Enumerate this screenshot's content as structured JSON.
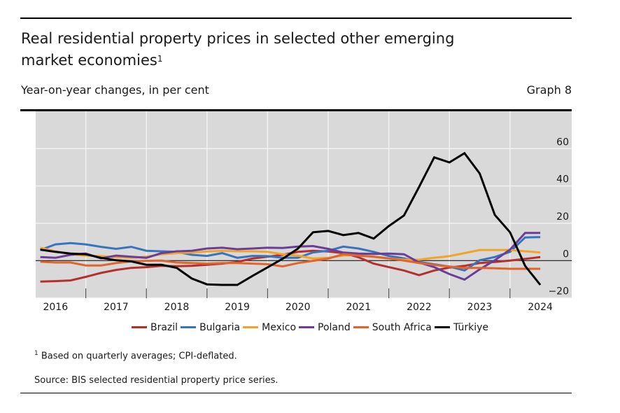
{
  "header": {
    "title": "Real residential property prices in selected other emerging market economies",
    "title_footnote_mark": "1",
    "subtitle": "Year-on-year changes, in per cent",
    "graph_number": "Graph 8"
  },
  "footer": {
    "footnote_mark": "1",
    "footnote": "Based on quarterly averages; CPI-deflated.",
    "source": "Source: BIS selected residential property price series."
  },
  "chart_data": {
    "type": "line",
    "title": "Real residential property prices in selected other emerging market economies",
    "xlabel": "",
    "ylabel": "Year-on-year changes, in per cent",
    "x_start": "2016-Q1",
    "x_end": "2024-Q2",
    "frequency": "quarterly",
    "x_tick_labels": [
      "2016",
      "2017",
      "2018",
      "2019",
      "2020",
      "2021",
      "2022",
      "2023",
      "2024"
    ],
    "ylim": [
      -22,
      70
    ],
    "y_ticks": [
      -20,
      0,
      20,
      40,
      60
    ],
    "y_axis_side": "right",
    "grid": true,
    "background": "#d9d9d9",
    "legend_position": "bottom",
    "series": [
      {
        "name": "Brazil",
        "color": "#b5302c",
        "values": [
          -11.2,
          -11.0,
          -10.6,
          -8.7,
          -6.6,
          -5.0,
          -3.9,
          -3.5,
          -2.8,
          -3.0,
          -2.8,
          -2.2,
          -1.6,
          -0.7,
          1.1,
          2.1,
          3.1,
          4.7,
          5.3,
          4.9,
          4.0,
          1.8,
          -1.6,
          -3.5,
          -5.3,
          -7.8,
          -5.3,
          -3.7,
          -2.8,
          -1.3,
          -0.7,
          0.0,
          0.9,
          1.9
        ]
      },
      {
        "name": "Bulgaria",
        "color": "#3a73bd",
        "values": [
          5.7,
          8.7,
          9.4,
          8.7,
          7.4,
          6.3,
          7.4,
          5.3,
          5.0,
          4.7,
          3.1,
          2.5,
          4.0,
          1.5,
          2.5,
          2.4,
          1.5,
          1.5,
          4.4,
          5.3,
          7.5,
          6.5,
          4.7,
          2.5,
          1.2,
          -0.7,
          -2.0,
          -3.2,
          -5.3,
          0.2,
          1.9,
          4.7,
          12.4,
          12.6
        ]
      },
      {
        "name": "Mexico",
        "color": "#f0a42a",
        "values": [
          6.9,
          5.0,
          3.4,
          2.7,
          2.4,
          1.8,
          1.5,
          2.1,
          3.4,
          4.0,
          4.3,
          4.9,
          5.3,
          5.0,
          5.0,
          4.7,
          3.4,
          2.7,
          1.1,
          1.5,
          2.7,
          3.0,
          2.1,
          1.1,
          0.5,
          0.5,
          1.5,
          2.4,
          4.0,
          5.7,
          5.7,
          5.7,
          5.0,
          4.4
        ]
      },
      {
        "name": "Poland",
        "color": "#6a3d96",
        "values": [
          1.9,
          1.5,
          3.1,
          3.8,
          1.2,
          2.7,
          2.1,
          1.5,
          4.0,
          5.0,
          5.3,
          6.5,
          6.9,
          6.1,
          6.5,
          6.9,
          6.8,
          7.5,
          7.8,
          6.3,
          4.3,
          3.8,
          3.6,
          3.8,
          3.4,
          -1.0,
          -3.5,
          -7.2,
          -10.2,
          -4.7,
          0.2,
          5.9,
          14.8,
          14.8
        ]
      },
      {
        "name": "South Africa",
        "color": "#e2642b",
        "values": [
          -0.6,
          -1.0,
          -1.0,
          -2.6,
          -2.6,
          -1.3,
          -0.4,
          -0.1,
          0.0,
          -1.0,
          -1.3,
          -1.6,
          -1.3,
          -1.3,
          -1.6,
          -1.9,
          -3.1,
          -1.3,
          -0.1,
          1.1,
          3.4,
          2.7,
          2.1,
          1.2,
          0.0,
          -1.3,
          -2.3,
          -3.2,
          -3.9,
          -3.9,
          -4.1,
          -4.4,
          -4.4,
          -4.4
        ]
      },
      {
        "name": "Türkiye",
        "color": "#000000",
        "values": [
          5.9,
          4.7,
          3.8,
          3.4,
          1.5,
          0.2,
          -0.4,
          -2.2,
          -2.2,
          -3.9,
          -9.6,
          -12.7,
          -13.0,
          -13.0,
          -8.2,
          -3.6,
          1.0,
          6.4,
          15.2,
          15.9,
          13.7,
          14.8,
          11.8,
          18.5,
          24.2,
          39.5,
          55.3,
          52.6,
          57.5,
          46.7,
          24.5,
          15.2,
          -2.8,
          -13.0
        ]
      }
    ]
  }
}
